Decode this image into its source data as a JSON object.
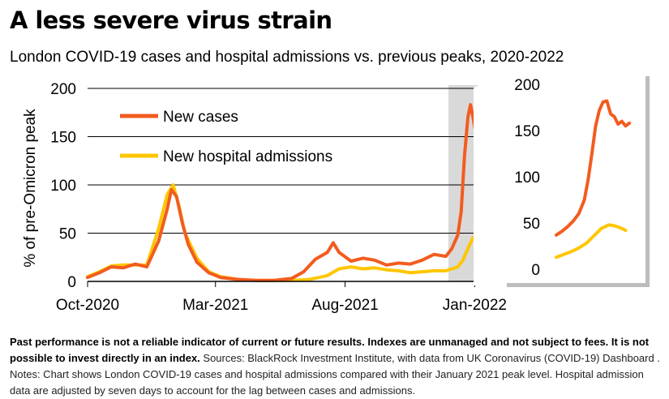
{
  "title": "A less severe virus strain",
  "subtitle": "London COVID-19 cases and hospital admissions vs. previous peaks, 2020-2022",
  "footnote": {
    "bold": "Past performance is not a reliable indicator of current or future results. Indexes are unmanaged and not subject to fees. It is not possible to invest directly in an index.",
    "text": " Sources: BlackRock Investment Institute, with data from UK Coronavirus (COVID-19) Dashboard . Notes: Chart shows London COVID-19 cases and hospital admissions compared with their January 2021 peak level. Hospital admission data are adjusted by seven days to account for the lag between cases and admissions."
  },
  "colors": {
    "cases": "#F25C1F",
    "admissions": "#FFC600",
    "highlight": "#D9D9D9",
    "axis": "#000000"
  },
  "chart_data": [
    {
      "type": "line",
      "xlabel": "",
      "ylabel": "% of pre-Omicron peak",
      "ylim": [
        0,
        200
      ],
      "yticks": [
        0,
        50,
        100,
        150,
        200
      ],
      "xlim": [
        "2020-10-01",
        "2022-01-15"
      ],
      "xticks": [
        {
          "date": "2020-10-01",
          "label": "Oct-2020"
        },
        {
          "date": "2021-03-01",
          "label": "Mar-2021"
        },
        {
          "date": "2021-08-01",
          "label": "Aug-2021"
        },
        {
          "date": "2022-01-01",
          "label": "Jan-2022"
        }
      ],
      "highlight_range": [
        "2021-12-01",
        "2022-01-15"
      ],
      "legend_position": "top-left",
      "series": [
        {
          "name": "New cases",
          "x": [
            "2020-10-01",
            "2020-10-15",
            "2020-10-29",
            "2020-11-12",
            "2020-11-26",
            "2020-12-10",
            "2020-12-24",
            "2021-01-03",
            "2021-01-08",
            "2021-01-14",
            "2021-01-21",
            "2021-01-28",
            "2021-02-07",
            "2021-02-21",
            "2021-03-07",
            "2021-03-28",
            "2021-04-18",
            "2021-05-09",
            "2021-05-30",
            "2021-06-13",
            "2021-06-27",
            "2021-07-11",
            "2021-07-18",
            "2021-07-25",
            "2021-08-08",
            "2021-08-22",
            "2021-09-05",
            "2021-09-19",
            "2021-10-03",
            "2021-10-17",
            "2021-10-31",
            "2021-11-14",
            "2021-11-28",
            "2021-12-05",
            "2021-12-12",
            "2021-12-16",
            "2021-12-20",
            "2021-12-24",
            "2021-12-27",
            "2021-12-30",
            "2022-01-02",
            "2022-01-05",
            "2022-01-09"
          ],
          "values": [
            4,
            9,
            15,
            14,
            18,
            15,
            42,
            75,
            95,
            88,
            60,
            38,
            20,
            9,
            4,
            2,
            1,
            1,
            3,
            10,
            23,
            30,
            40,
            30,
            21,
            24,
            22,
            17,
            19,
            18,
            22,
            28,
            26,
            34,
            48,
            72,
            130,
            170,
            183,
            170,
            155,
            160,
            158
          ]
        },
        {
          "name": "New hospital admissions",
          "x": [
            "2020-10-01",
            "2020-10-15",
            "2020-10-29",
            "2020-11-12",
            "2020-11-26",
            "2020-12-10",
            "2020-12-24",
            "2021-01-03",
            "2021-01-10",
            "2021-01-17",
            "2021-01-24",
            "2021-02-07",
            "2021-02-21",
            "2021-03-07",
            "2021-03-28",
            "2021-04-18",
            "2021-05-09",
            "2021-05-30",
            "2021-06-20",
            "2021-07-11",
            "2021-07-25",
            "2021-08-08",
            "2021-08-22",
            "2021-09-05",
            "2021-09-19",
            "2021-10-03",
            "2021-10-17",
            "2021-10-31",
            "2021-11-14",
            "2021-11-28",
            "2021-12-05",
            "2021-12-12",
            "2021-12-18",
            "2021-12-22",
            "2021-12-26",
            "2021-12-30",
            "2022-01-03",
            "2022-01-07"
          ],
          "values": [
            5,
            10,
            16,
            17,
            17,
            17,
            55,
            90,
            100,
            78,
            50,
            24,
            10,
            5,
            2,
            1,
            1,
            1,
            2,
            6,
            13,
            15,
            13,
            14,
            12,
            11,
            9,
            10,
            11,
            11,
            13,
            15,
            22,
            30,
            38,
            45,
            48,
            42
          ]
        }
      ]
    },
    {
      "type": "line",
      "ylim": [
        0,
        200
      ],
      "yticks": [
        0,
        50,
        100,
        150,
        200
      ],
      "xlim": [
        "2021-12-01",
        "2022-01-12"
      ],
      "series": [
        {
          "name": "New cases",
          "x": [
            "2021-12-01",
            "2021-12-04",
            "2021-12-07",
            "2021-12-10",
            "2021-12-13",
            "2021-12-16",
            "2021-12-18",
            "2021-12-20",
            "2021-12-22",
            "2021-12-24",
            "2021-12-26",
            "2021-12-28",
            "2021-12-30",
            "2022-01-01",
            "2022-01-03",
            "2022-01-05",
            "2022-01-07",
            "2022-01-09"
          ],
          "values": [
            37,
            41,
            46,
            52,
            60,
            75,
            97,
            125,
            155,
            172,
            181,
            182,
            168,
            165,
            157,
            160,
            155,
            158
          ]
        },
        {
          "name": "New hospital admissions",
          "x": [
            "2021-12-01",
            "2021-12-05",
            "2021-12-09",
            "2021-12-13",
            "2021-12-17",
            "2021-12-21",
            "2021-12-25",
            "2021-12-29",
            "2022-01-01",
            "2022-01-04",
            "2022-01-07"
          ],
          "values": [
            13,
            16,
            19,
            23,
            28,
            36,
            44,
            48,
            47,
            45,
            42
          ]
        }
      ]
    }
  ]
}
